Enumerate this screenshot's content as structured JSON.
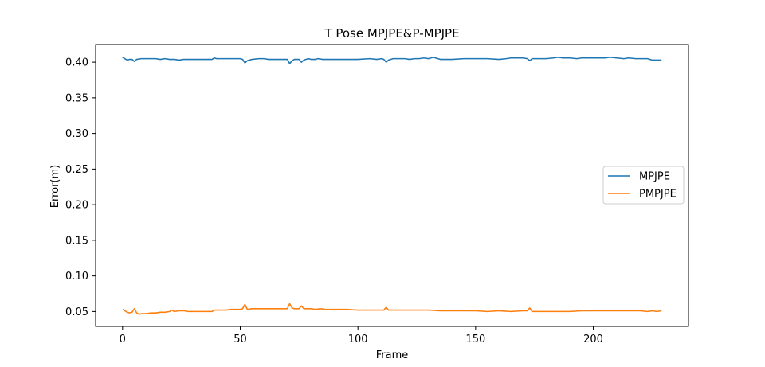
{
  "chart_data": {
    "type": "line",
    "title": "T Pose MPJPE&P-MPJPE",
    "xlabel": "Frame",
    "ylabel": "Error(m)",
    "xlim": [
      -11.45,
      240.45
    ],
    "ylim": [
      0.0292,
      0.4247
    ],
    "xticks": [
      0,
      50,
      100,
      150,
      200
    ],
    "yticks": [
      0.05,
      0.1,
      0.15,
      0.2,
      0.25,
      0.3,
      0.35,
      0.4
    ],
    "ytick_labels": [
      "0.05",
      "0.10",
      "0.15",
      "0.20",
      "0.25",
      "0.30",
      "0.35",
      "0.40"
    ],
    "grid": false,
    "legend": {
      "position": "center-right",
      "entries": [
        "MPJPE",
        "PMPJPE"
      ]
    },
    "x": [
      0,
      229
    ],
    "series": [
      {
        "name": "MPJPE",
        "color": "#1f77b4",
        "values": [
          [
            0,
            0.407
          ],
          [
            1,
            0.405
          ],
          [
            2,
            0.403
          ],
          [
            3,
            0.404
          ],
          [
            4,
            0.404
          ],
          [
            5,
            0.401
          ],
          [
            6,
            0.404
          ],
          [
            8,
            0.405
          ],
          [
            10,
            0.405
          ],
          [
            12,
            0.405
          ],
          [
            14,
            0.405
          ],
          [
            16,
            0.404
          ],
          [
            18,
            0.405
          ],
          [
            20,
            0.404
          ],
          [
            22,
            0.404
          ],
          [
            24,
            0.403
          ],
          [
            26,
            0.404
          ],
          [
            30,
            0.404
          ],
          [
            34,
            0.404
          ],
          [
            38,
            0.404
          ],
          [
            39,
            0.406
          ],
          [
            40,
            0.405
          ],
          [
            44,
            0.405
          ],
          [
            48,
            0.405
          ],
          [
            50,
            0.405
          ],
          [
            51,
            0.404
          ],
          [
            52,
            0.399
          ],
          [
            53,
            0.402
          ],
          [
            55,
            0.404
          ],
          [
            58,
            0.405
          ],
          [
            60,
            0.405
          ],
          [
            62,
            0.404
          ],
          [
            64,
            0.404
          ],
          [
            66,
            0.404
          ],
          [
            68,
            0.404
          ],
          [
            70,
            0.404
          ],
          [
            71,
            0.398
          ],
          [
            72,
            0.402
          ],
          [
            73,
            0.404
          ],
          [
            75,
            0.404
          ],
          [
            76,
            0.4
          ],
          [
            77,
            0.403
          ],
          [
            79,
            0.405
          ],
          [
            80,
            0.404
          ],
          [
            82,
            0.404
          ],
          [
            83,
            0.405
          ],
          [
            85,
            0.404
          ],
          [
            90,
            0.404
          ],
          [
            95,
            0.404
          ],
          [
            100,
            0.404
          ],
          [
            105,
            0.405
          ],
          [
            108,
            0.404
          ],
          [
            110,
            0.405
          ],
          [
            111,
            0.404
          ],
          [
            112,
            0.4
          ],
          [
            113,
            0.403
          ],
          [
            115,
            0.405
          ],
          [
            118,
            0.405
          ],
          [
            120,
            0.405
          ],
          [
            122,
            0.404
          ],
          [
            124,
            0.405
          ],
          [
            126,
            0.405
          ],
          [
            128,
            0.406
          ],
          [
            130,
            0.405
          ],
          [
            132,
            0.407
          ],
          [
            133,
            0.406
          ],
          [
            135,
            0.404
          ],
          [
            138,
            0.404
          ],
          [
            140,
            0.404
          ],
          [
            145,
            0.405
          ],
          [
            150,
            0.405
          ],
          [
            155,
            0.405
          ],
          [
            160,
            0.404
          ],
          [
            163,
            0.405
          ],
          [
            165,
            0.406
          ],
          [
            168,
            0.406
          ],
          [
            170,
            0.406
          ],
          [
            172,
            0.405
          ],
          [
            173,
            0.402
          ],
          [
            174,
            0.405
          ],
          [
            176,
            0.405
          ],
          [
            180,
            0.405
          ],
          [
            183,
            0.406
          ],
          [
            185,
            0.407
          ],
          [
            187,
            0.406
          ],
          [
            190,
            0.406
          ],
          [
            193,
            0.405
          ],
          [
            195,
            0.406
          ],
          [
            200,
            0.406
          ],
          [
            203,
            0.406
          ],
          [
            205,
            0.406
          ],
          [
            207,
            0.407
          ],
          [
            210,
            0.406
          ],
          [
            213,
            0.405
          ],
          [
            215,
            0.406
          ],
          [
            218,
            0.405
          ],
          [
            220,
            0.405
          ],
          [
            223,
            0.405
          ],
          [
            225,
            0.403
          ],
          [
            227,
            0.403
          ],
          [
            229,
            0.403
          ]
        ]
      },
      {
        "name": "PMPJPE",
        "color": "#ff7f0e",
        "values": [
          [
            0,
            0.053
          ],
          [
            1,
            0.051
          ],
          [
            2,
            0.049
          ],
          [
            3,
            0.048
          ],
          [
            4,
            0.049
          ],
          [
            5,
            0.054
          ],
          [
            6,
            0.048
          ],
          [
            7,
            0.046
          ],
          [
            8,
            0.047
          ],
          [
            10,
            0.047
          ],
          [
            12,
            0.048
          ],
          [
            14,
            0.048
          ],
          [
            16,
            0.049
          ],
          [
            18,
            0.049
          ],
          [
            20,
            0.05
          ],
          [
            21,
            0.052
          ],
          [
            22,
            0.05
          ],
          [
            24,
            0.051
          ],
          [
            26,
            0.051
          ],
          [
            28,
            0.05
          ],
          [
            30,
            0.05
          ],
          [
            34,
            0.05
          ],
          [
            38,
            0.05
          ],
          [
            39,
            0.052
          ],
          [
            40,
            0.052
          ],
          [
            44,
            0.052
          ],
          [
            46,
            0.053
          ],
          [
            48,
            0.053
          ],
          [
            50,
            0.053
          ],
          [
            51,
            0.054
          ],
          [
            52,
            0.06
          ],
          [
            53,
            0.053
          ],
          [
            55,
            0.054
          ],
          [
            58,
            0.054
          ],
          [
            60,
            0.054
          ],
          [
            62,
            0.054
          ],
          [
            64,
            0.054
          ],
          [
            66,
            0.054
          ],
          [
            68,
            0.054
          ],
          [
            70,
            0.054
          ],
          [
            71,
            0.061
          ],
          [
            72,
            0.055
          ],
          [
            73,
            0.054
          ],
          [
            74,
            0.054
          ],
          [
            75,
            0.054
          ],
          [
            76,
            0.058
          ],
          [
            77,
            0.054
          ],
          [
            79,
            0.054
          ],
          [
            80,
            0.054
          ],
          [
            82,
            0.053
          ],
          [
            84,
            0.054
          ],
          [
            86,
            0.053
          ],
          [
            88,
            0.053
          ],
          [
            90,
            0.053
          ],
          [
            95,
            0.053
          ],
          [
            100,
            0.052
          ],
          [
            105,
            0.052
          ],
          [
            110,
            0.052
          ],
          [
            111,
            0.052
          ],
          [
            112,
            0.056
          ],
          [
            113,
            0.052
          ],
          [
            115,
            0.052
          ],
          [
            120,
            0.052
          ],
          [
            125,
            0.052
          ],
          [
            130,
            0.052
          ],
          [
            135,
            0.051
          ],
          [
            140,
            0.051
          ],
          [
            145,
            0.051
          ],
          [
            150,
            0.051
          ],
          [
            155,
            0.05
          ],
          [
            160,
            0.051
          ],
          [
            165,
            0.05
          ],
          [
            170,
            0.051
          ],
          [
            172,
            0.051
          ],
          [
            173,
            0.055
          ],
          [
            174,
            0.05
          ],
          [
            176,
            0.05
          ],
          [
            180,
            0.05
          ],
          [
            185,
            0.05
          ],
          [
            190,
            0.05
          ],
          [
            195,
            0.051
          ],
          [
            200,
            0.051
          ],
          [
            205,
            0.051
          ],
          [
            210,
            0.051
          ],
          [
            215,
            0.051
          ],
          [
            220,
            0.051
          ],
          [
            223,
            0.05
          ],
          [
            225,
            0.051
          ],
          [
            227,
            0.05
          ],
          [
            229,
            0.051
          ]
        ]
      }
    ]
  }
}
